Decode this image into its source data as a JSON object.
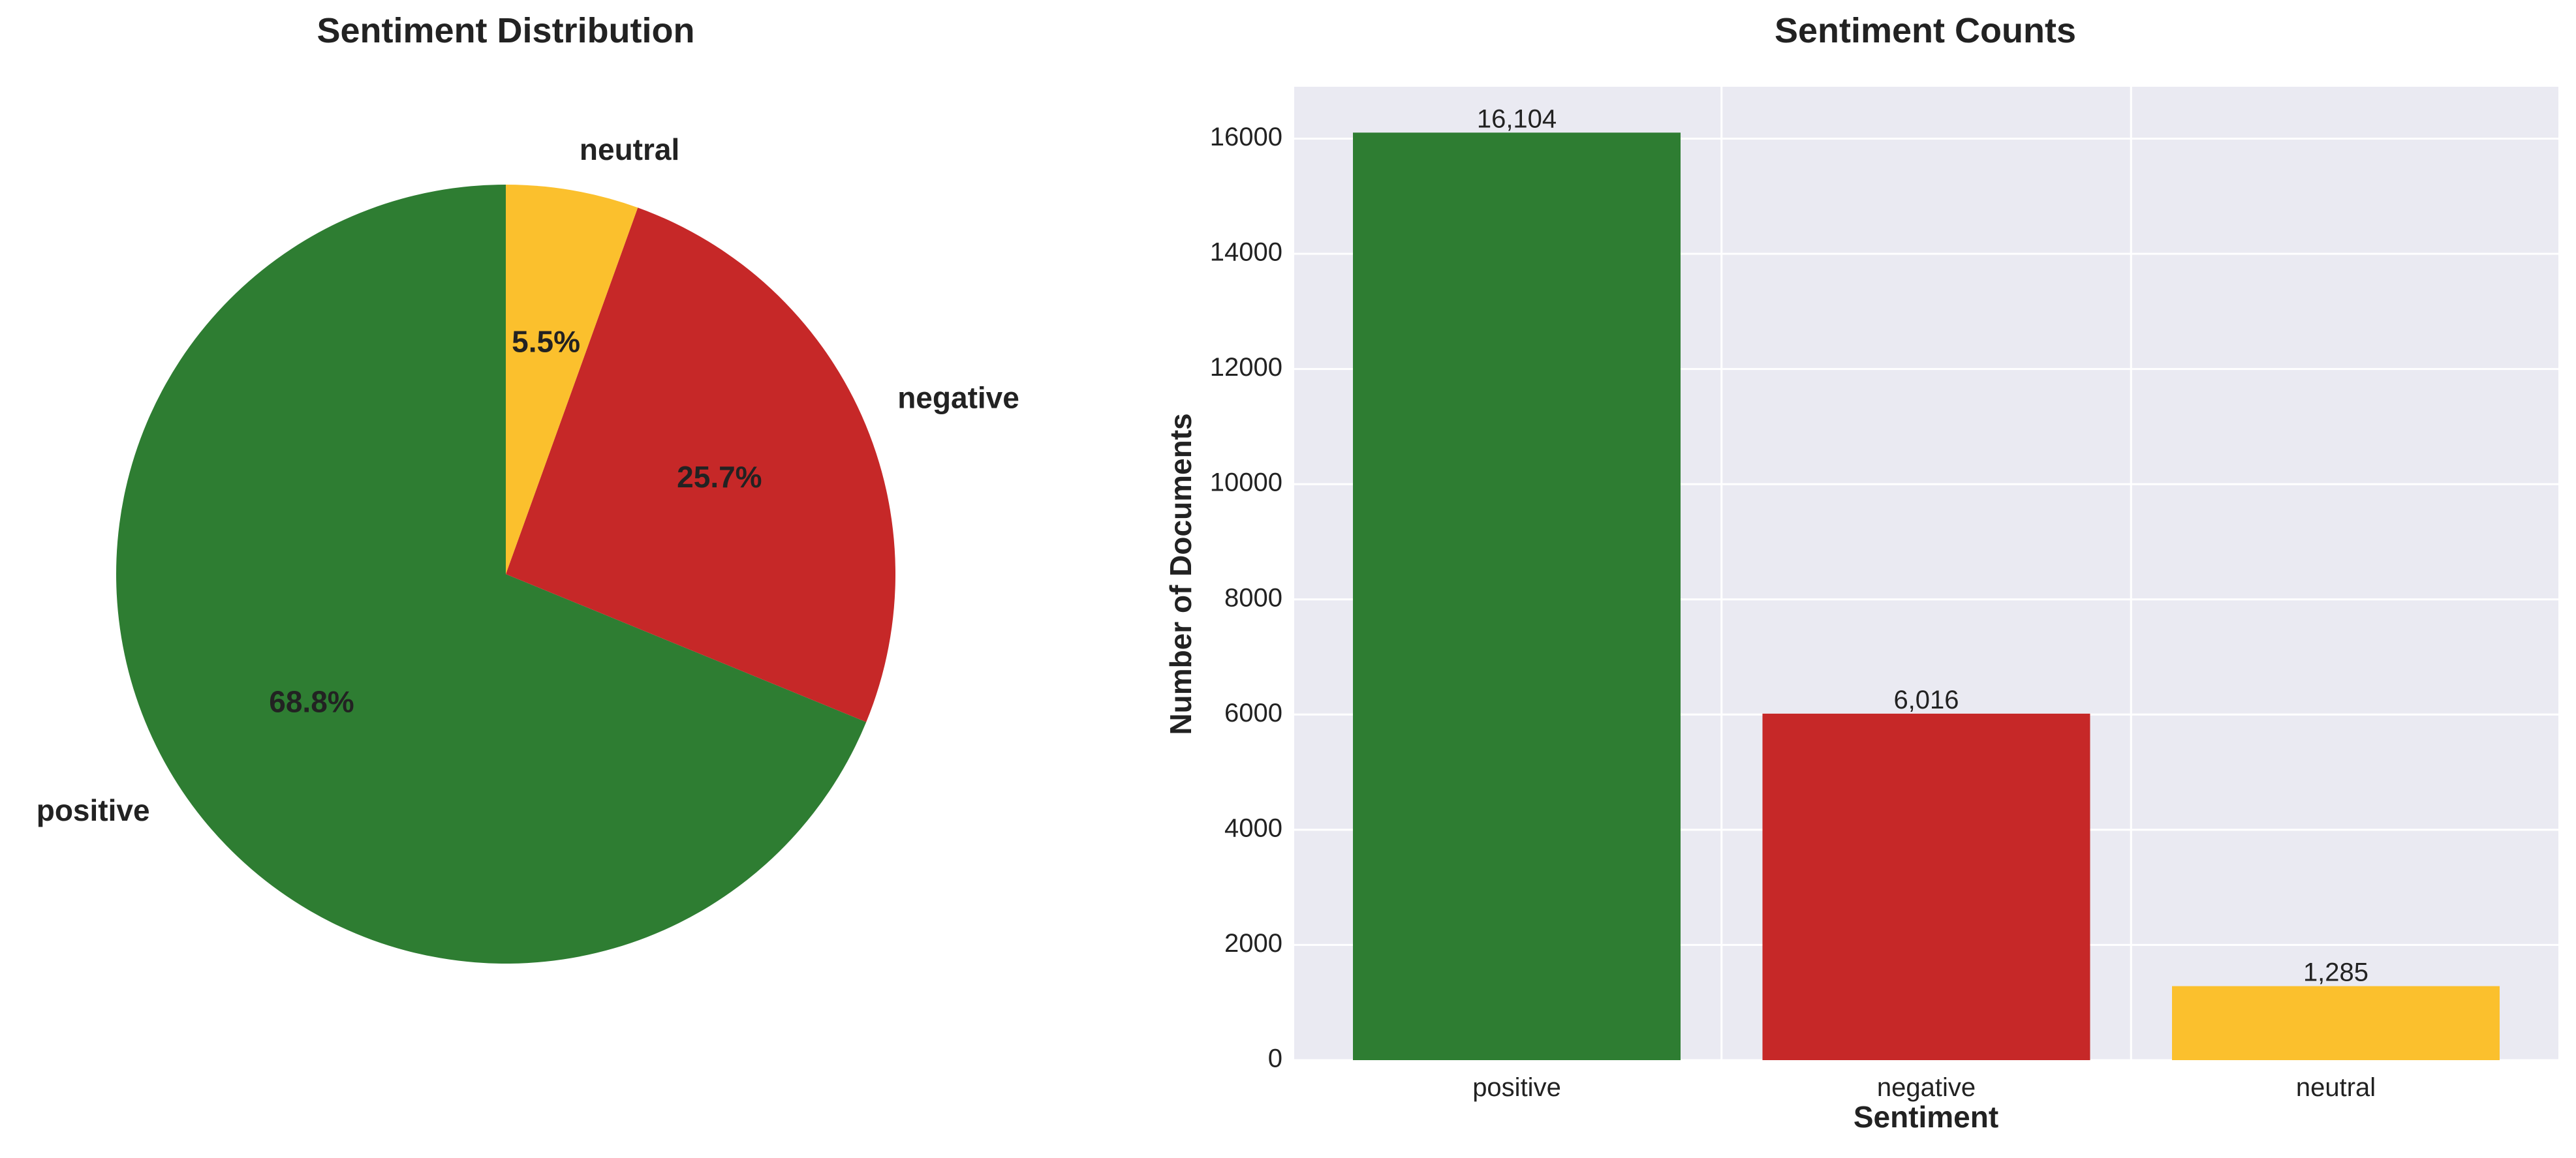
{
  "chart_data": [
    {
      "type": "pie",
      "title": "Sentiment Distribution",
      "labels": [
        "positive",
        "negative",
        "neutral"
      ],
      "values": [
        68.8,
        25.7,
        5.5
      ],
      "value_labels": [
        "68.8%",
        "25.7%",
        "5.5%"
      ],
      "colors": [
        "#2e7d32",
        "#c62828",
        "#fbc02d"
      ],
      "start_angle_deg": 90,
      "direction": "counterclockwise"
    },
    {
      "type": "bar",
      "title": "Sentiment Counts",
      "xlabel": "Sentiment",
      "ylabel": "Number of Documents",
      "categories": [
        "positive",
        "negative",
        "neutral"
      ],
      "values": [
        16104,
        6016,
        1285
      ],
      "data_labels": [
        "16,104",
        "6,016",
        "1,285"
      ],
      "colors": [
        "#2e7d32",
        "#c62828",
        "#fbc02d"
      ],
      "ylim": [
        0,
        16900
      ],
      "yticks": [
        0,
        2000,
        4000,
        6000,
        8000,
        10000,
        12000,
        14000,
        16000
      ],
      "grid": true
    }
  ]
}
